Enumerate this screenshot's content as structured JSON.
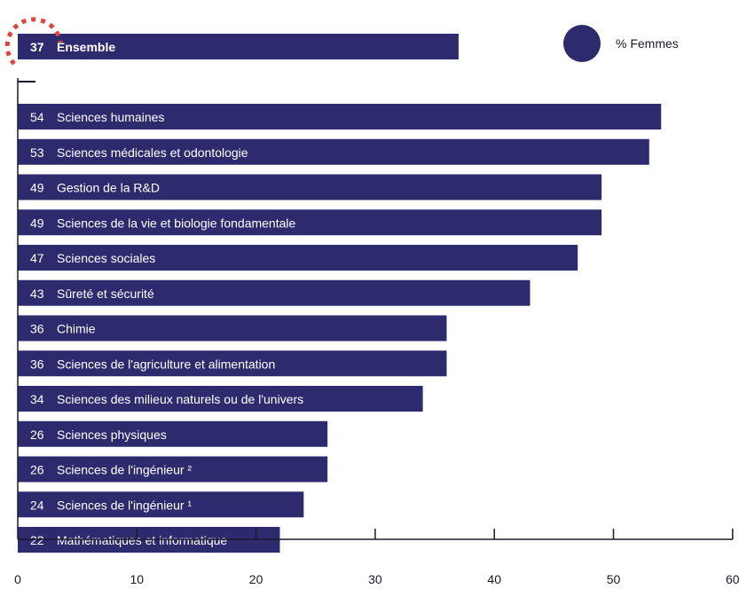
{
  "chart_data": {
    "type": "bar",
    "orientation": "horizontal",
    "legend": {
      "label": "% Femmes",
      "position": "top-right",
      "color": "#2e2a6e"
    },
    "summary": {
      "label": "Ensemble",
      "value": 37,
      "highlight_color": "#e0443a"
    },
    "categories": [
      "Sciences humaines",
      "Sciences médicales et odontologie",
      "Gestion de la R&D",
      "Sciences de la vie et biologie fondamentale",
      "Sciences sociales",
      "Sûreté et sécurité",
      "Chimie",
      "Sciences de l'agriculture et alimentation",
      "Sciences des milieux naturels ou de l'univers",
      "Sciences physiques",
      "Sciences de l'ingénieur ²",
      "Sciences de l'ingénieur ¹",
      "Mathématiques et informatique"
    ],
    "values": [
      54,
      53,
      49,
      49,
      47,
      43,
      36,
      36,
      34,
      26,
      26,
      24,
      22
    ],
    "xlim": [
      0,
      60
    ],
    "xticks": [
      0,
      10,
      20,
      30,
      40,
      50,
      60
    ],
    "grid": false,
    "bar_color": "#2e2a6e"
  }
}
